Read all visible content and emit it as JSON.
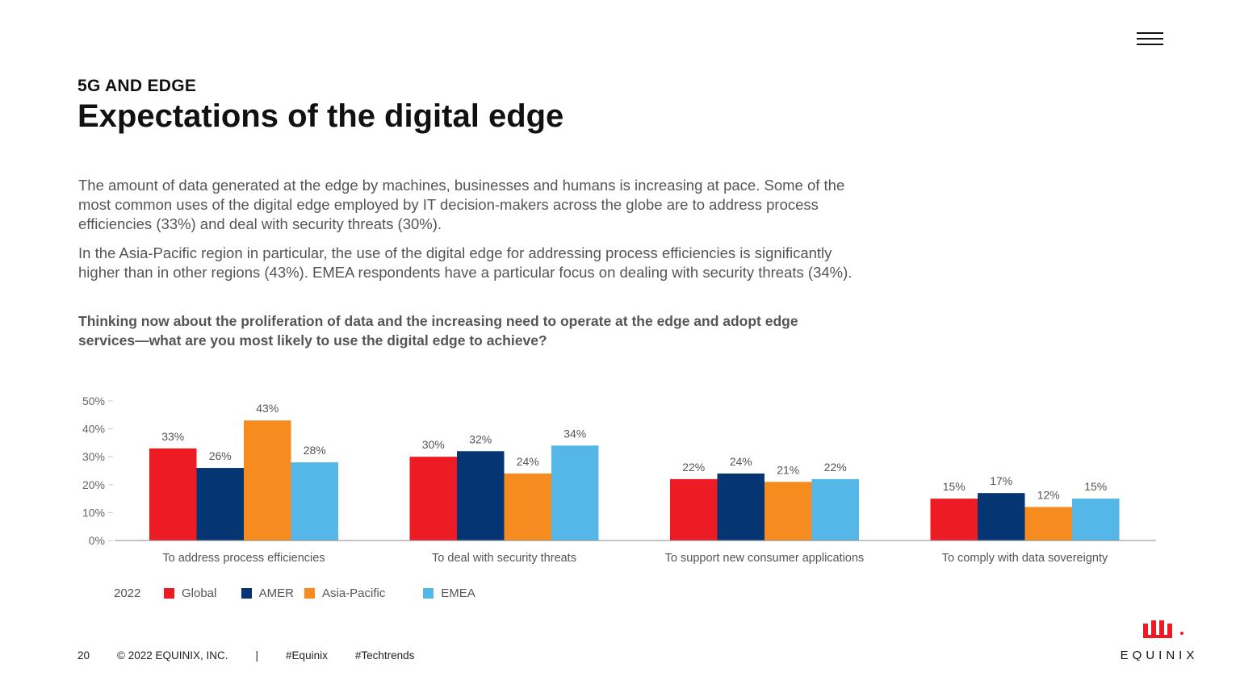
{
  "header": {
    "menu_icon": "hamburger-menu-icon",
    "section": "5G AND EDGE",
    "title": "Expectations of the digital edge"
  },
  "body": {
    "p1": "The amount of data generated at the edge by machines, businesses and humans is increasing at pace. Some of the most common uses of the digital edge employed by IT decision-makers across the globe are to address process efficiencies (33%) and deal with security threats (30%).",
    "p2": "In the Asia-Pacific region in particular, the use of the digital edge for addressing process efficiencies is significantly higher than in other regions (43%). EMEA respondents have a particular focus on dealing with security threats (34%).",
    "question": "Thinking now about the proliferation of data and the increasing need to operate at the edge and adopt edge services—what are you most likely to use the digital edge to achieve?"
  },
  "chart_data": {
    "type": "bar",
    "categories": [
      "To address process efficiencies",
      "To deal with security threats",
      "To support new consumer applications",
      "To comply with data sovereignty"
    ],
    "series": [
      {
        "name": "Global",
        "color": "#ED1C24",
        "values": [
          33,
          30,
          22,
          15
        ]
      },
      {
        "name": "AMER",
        "color": "#053673",
        "values": [
          26,
          32,
          24,
          17
        ]
      },
      {
        "name": "Asia-Pacific",
        "color": "#F68B1F",
        "values": [
          43,
          24,
          21,
          12
        ]
      },
      {
        "name": "EMEA",
        "color": "#54B7E7",
        "values": [
          28,
          34,
          22,
          15
        ]
      }
    ],
    "ylim": [
      0,
      50
    ],
    "yticks": [
      "0%",
      "10%",
      "20%",
      "30%",
      "40%",
      "50%"
    ],
    "legend_title": "2022",
    "legend_position": "bottom-left",
    "grid": false
  },
  "footer": {
    "page": "20",
    "copyright": "© 2022 EQUINIX, INC.",
    "sep": "|",
    "tag1": "#Equinix",
    "tag2": "#Techtrends"
  },
  "logo": {
    "text": "EQUINIX",
    "color": "#ED1C24"
  }
}
